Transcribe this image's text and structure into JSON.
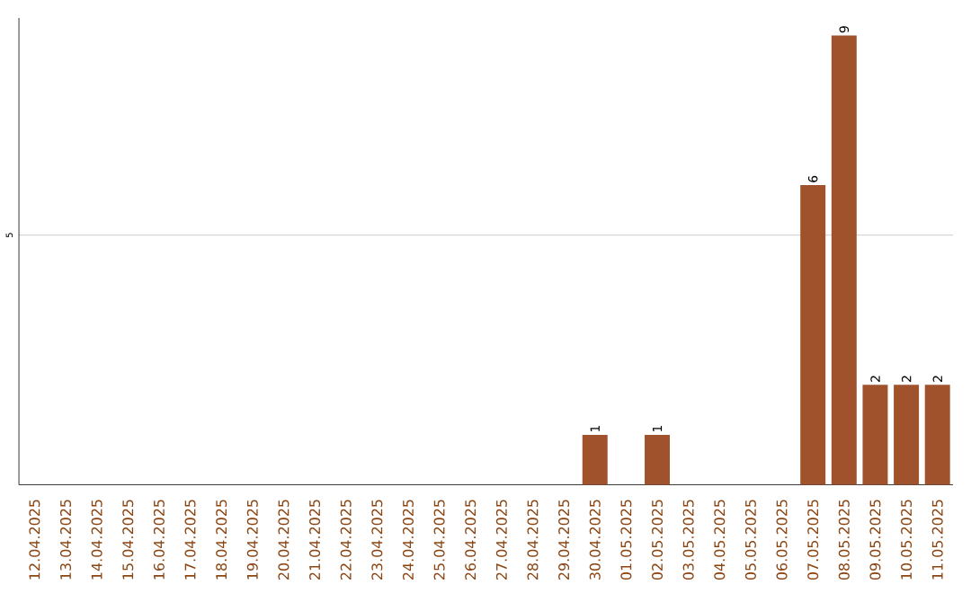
{
  "chart_data": {
    "type": "bar",
    "categories": [
      "12.04.2025",
      "13.04.2025",
      "14.04.2025",
      "15.04.2025",
      "16.04.2025",
      "17.04.2025",
      "18.04.2025",
      "19.04.2025",
      "20.04.2025",
      "21.04.2025",
      "22.04.2025",
      "23.04.2025",
      "24.04.2025",
      "25.04.2025",
      "26.04.2025",
      "27.04.2025",
      "28.04.2025",
      "29.04.2025",
      "30.04.2025",
      "01.05.2025",
      "02.05.2025",
      "03.05.2025",
      "04.05.2025",
      "05.05.2025",
      "06.05.2025",
      "07.05.2025",
      "08.05.2025",
      "09.05.2025",
      "10.05.2025",
      "11.05.2025"
    ],
    "values": [
      null,
      null,
      null,
      null,
      null,
      null,
      null,
      null,
      null,
      null,
      null,
      null,
      null,
      null,
      null,
      null,
      null,
      null,
      1,
      null,
      1,
      null,
      null,
      null,
      null,
      6,
      9,
      2,
      2,
      2
    ],
    "data_labels": true,
    "color": "#a0522d",
    "ylim": [
      0,
      9.35
    ],
    "yticks": [
      5
    ],
    "grid": "y"
  }
}
